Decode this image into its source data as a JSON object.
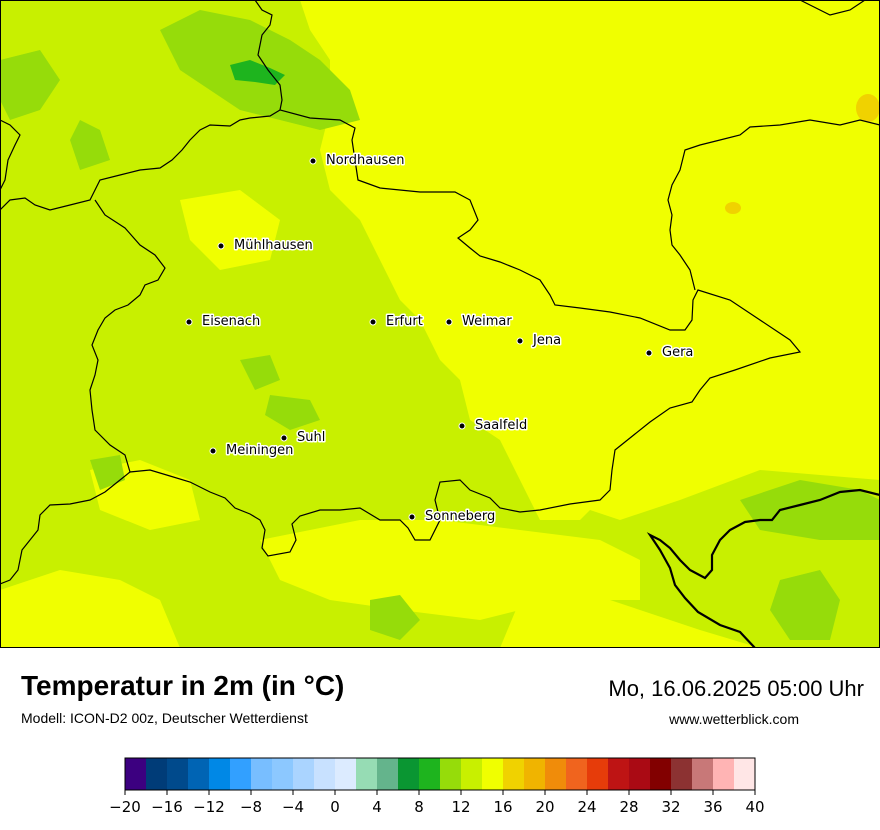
{
  "map": {
    "region": "Thüringen",
    "cities": [
      {
        "name": "Nordhausen"
      },
      {
        "name": "Mühlhausen"
      },
      {
        "name": "Eisenach"
      },
      {
        "name": "Erfurt"
      },
      {
        "name": "Weimar"
      },
      {
        "name": "Jena"
      },
      {
        "name": "Gera"
      },
      {
        "name": "Suhl"
      },
      {
        "name": "Meiningen"
      },
      {
        "name": "Saalfeld"
      },
      {
        "name": "Sonneberg"
      }
    ]
  },
  "header": {
    "title": "Temperatur in 2m (in °C)",
    "subtitle": "Modell: ICON-D2 00z, Deutscher Wetterdienst",
    "datetime": "Mo, 16.06.2025 05:00 Uhr",
    "website": "www.wetterblick.com"
  },
  "legend": {
    "unit": "°C",
    "colors": [
      "#3c0080",
      "#003c78",
      "#004a8c",
      "#0064b4",
      "#0088e6",
      "#32a0ff",
      "#78beff",
      "#8cc8ff",
      "#aad4ff",
      "#c8e1ff",
      "#dcebff",
      "#96dcb4",
      "#64b48c",
      "#0a9632",
      "#1eb41e",
      "#96dc0a",
      "#c8f000",
      "#f0ff00",
      "#f0d200",
      "#f0b400",
      "#f08c0a",
      "#f0641e",
      "#e63c0a",
      "#be1414",
      "#aa0a14",
      "#820000",
      "#8c3232",
      "#c87878",
      "#ffb4b4",
      "#ffe6e6"
    ],
    "ticks": [
      "−20",
      "−16",
      "−12",
      "−8",
      "−4",
      "0",
      "4",
      "8",
      "12",
      "16",
      "20",
      "24",
      "28",
      "32",
      "36",
      "40"
    ]
  }
}
